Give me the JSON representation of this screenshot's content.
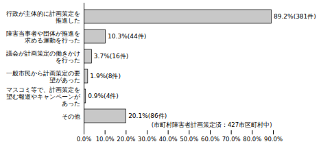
{
  "chart_data": {
    "type": "bar",
    "orientation": "horizontal",
    "categories": [
      "行政が主体的に計画策定を推進した",
      "障害当事者や団体が推進を求める運動を行った",
      "議会が計画策定の働きかけを行った",
      "一般市民から計画策定の要望があった",
      "マスコミ等で、計画策定を望む報道やキャンペーンがあった",
      "その他"
    ],
    "values": [
      89.2,
      10.3,
      3.7,
      1.9,
      0.9,
      20.1
    ],
    "value_labels": [
      "89.2%(381件)",
      "10.3%(44件)",
      "3.7%(16件)",
      "1.9%(8件)",
      "0.9%(4件)",
      "20.1%(86件)"
    ],
    "data_labels": true,
    "color": "#c8c8c8",
    "xlim": [
      0,
      90
    ],
    "xticks": [
      {
        "value": 0,
        "label": "0.0%"
      },
      {
        "value": 10,
        "label": "10.0%"
      },
      {
        "value": 20,
        "label": "20.0%"
      },
      {
        "value": 30,
        "label": "30.0%"
      },
      {
        "value": 40,
        "label": "40.0%"
      },
      {
        "value": 50,
        "label": "50.0%"
      },
      {
        "value": 60,
        "label": "60.0%"
      },
      {
        "value": 70,
        "label": "70.0%"
      },
      {
        "value": 80,
        "label": "80.0%"
      },
      {
        "value": 90,
        "label": "90.0%"
      }
    ],
    "annotations": [
      "(市町村障害者計画策定済：427市区町村中)"
    ],
    "grid": false
  }
}
